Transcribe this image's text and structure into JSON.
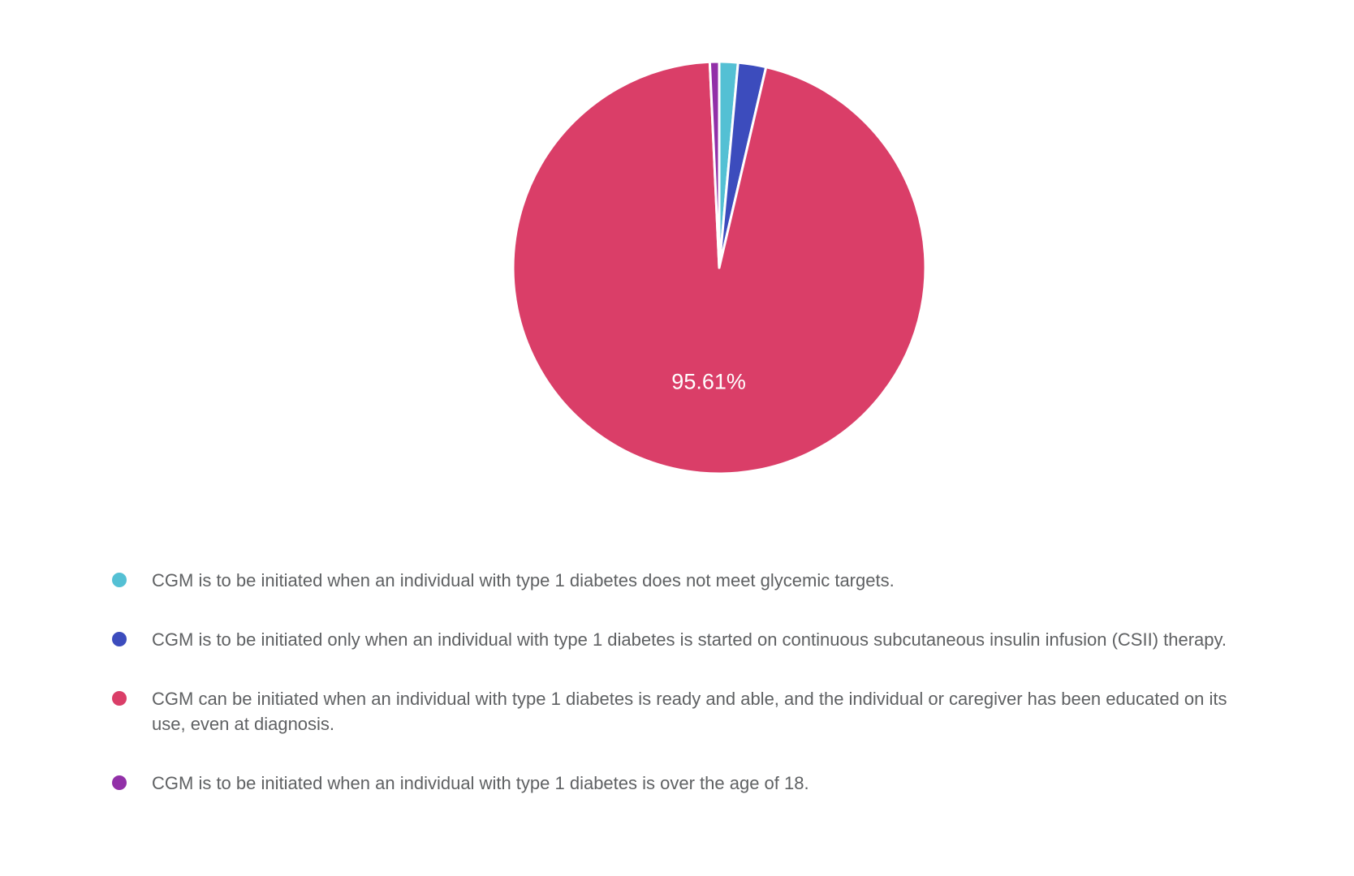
{
  "page": {
    "background_color": "#ffffff"
  },
  "chart_data": {
    "type": "pie",
    "title": "",
    "direction": "clockwise",
    "start_angle_deg": 0,
    "legend_position": "bottom-left",
    "slice_border_color": "#ffffff",
    "data_label_color": "#ffffff",
    "series": [
      {
        "label": "CGM is to be initiated when an individual with type 1 diabetes does not meet glycemic targets.",
        "value": 1.46,
        "color": "#54C0D4",
        "data_label": ""
      },
      {
        "label": "CGM is to be initiated only when an individual with type 1 diabetes is started on continuous subcutaneous insulin infusion (CSII) therapy.",
        "value": 2.19,
        "color": "#3C4CBD",
        "data_label": ""
      },
      {
        "label": "CGM can be initiated when an individual with type 1 diabetes is ready and able, and the individual or caregiver has been educated on its use, even at diagnosis.",
        "value": 95.61,
        "color": "#DA3E68",
        "data_label": "95.61%"
      },
      {
        "label": "CGM is to be initiated when an individual with type 1 diabetes is over the age of 18.",
        "value": 0.73,
        "color": "#9230A8",
        "data_label": ""
      }
    ]
  }
}
